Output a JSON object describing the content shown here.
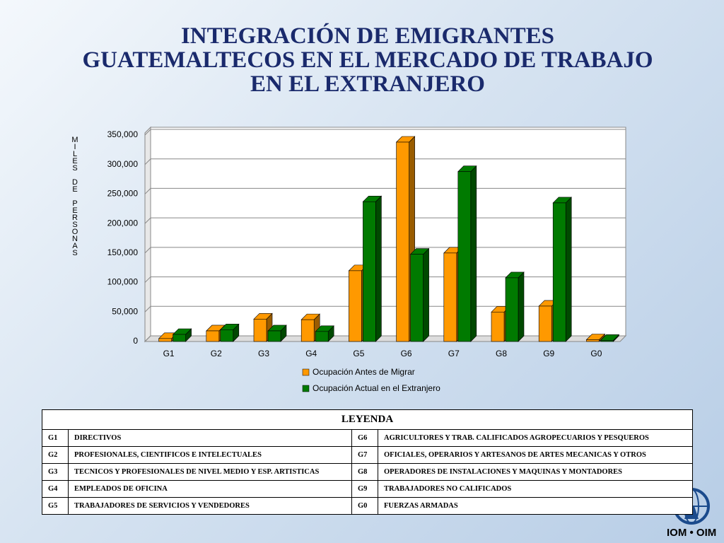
{
  "title": "INTEGRACIÓN DE EMIGRANTES GUATEMALTECOS EN EL MERCADO DE TRABAJO EN EL EXTRANJERO",
  "chart_data": {
    "type": "bar3d",
    "y_label": "MILES DE PERSONAS",
    "categories": [
      "G1",
      "G2",
      "G3",
      "G4",
      "G5",
      "G6",
      "G7",
      "G8",
      "G9",
      "G0"
    ],
    "series": [
      {
        "name": "Ocupación Antes de Migrar",
        "color": "#ff9900",
        "values": [
          5000,
          18000,
          38000,
          37000,
          120000,
          338000,
          150000,
          50000,
          60000,
          3000
        ]
      },
      {
        "name": "Ocupación Actual en el Extranjero",
        "color": "#007a00",
        "values": [
          12000,
          20000,
          18000,
          17000,
          237000,
          148000,
          288000,
          108000,
          235000,
          2000
        ]
      }
    ],
    "ylim": [
      0,
      350000
    ],
    "yticks": [
      0,
      {
        "value": 50000,
        "label": "50,000"
      },
      {
        "value": 100000,
        "label": "100,000"
      },
      {
        "value": 150000,
        "label": "150,000"
      },
      {
        "value": 200000,
        "label": "200,000"
      },
      {
        "value": 250000,
        "label": "250,000"
      },
      {
        "value": 300000,
        "label": "300,000"
      },
      {
        "value": 350000,
        "label": "350,000"
      }
    ],
    "grid": true
  },
  "legend_table": {
    "title": "LEYENDA",
    "rows": [
      [
        "G1",
        "DIRECTIVOS",
        "G6",
        "AGRICULTORES Y TRAB.  CALIFICADOS AGROPECUARIOS Y PESQUEROS"
      ],
      [
        "G2",
        "PROFESIONALES, CIENTIFICOS E INTELECTUALES",
        "G7",
        "OFICIALES, OPERARIOS Y ARTESANOS DE ARTES MECANICAS Y OTROS"
      ],
      [
        "G3",
        "TECNICOS Y PROFESIONALES DE NIVEL MEDIO Y ESP. ARTISTICAS",
        "G8",
        "OPERADORES DE INSTALACIONES Y MAQUINAS Y MONTADORES"
      ],
      [
        "G4",
        "EMPLEADOS DE OFICINA",
        "G9",
        "TRABAJADORES NO CALIFICADOS"
      ],
      [
        "G5",
        "TRABAJADORES DE SERVICIOS Y VENDEDORES",
        "G0",
        "FUERZAS ARMADAS"
      ]
    ]
  },
  "logo": "IOM • OIM"
}
